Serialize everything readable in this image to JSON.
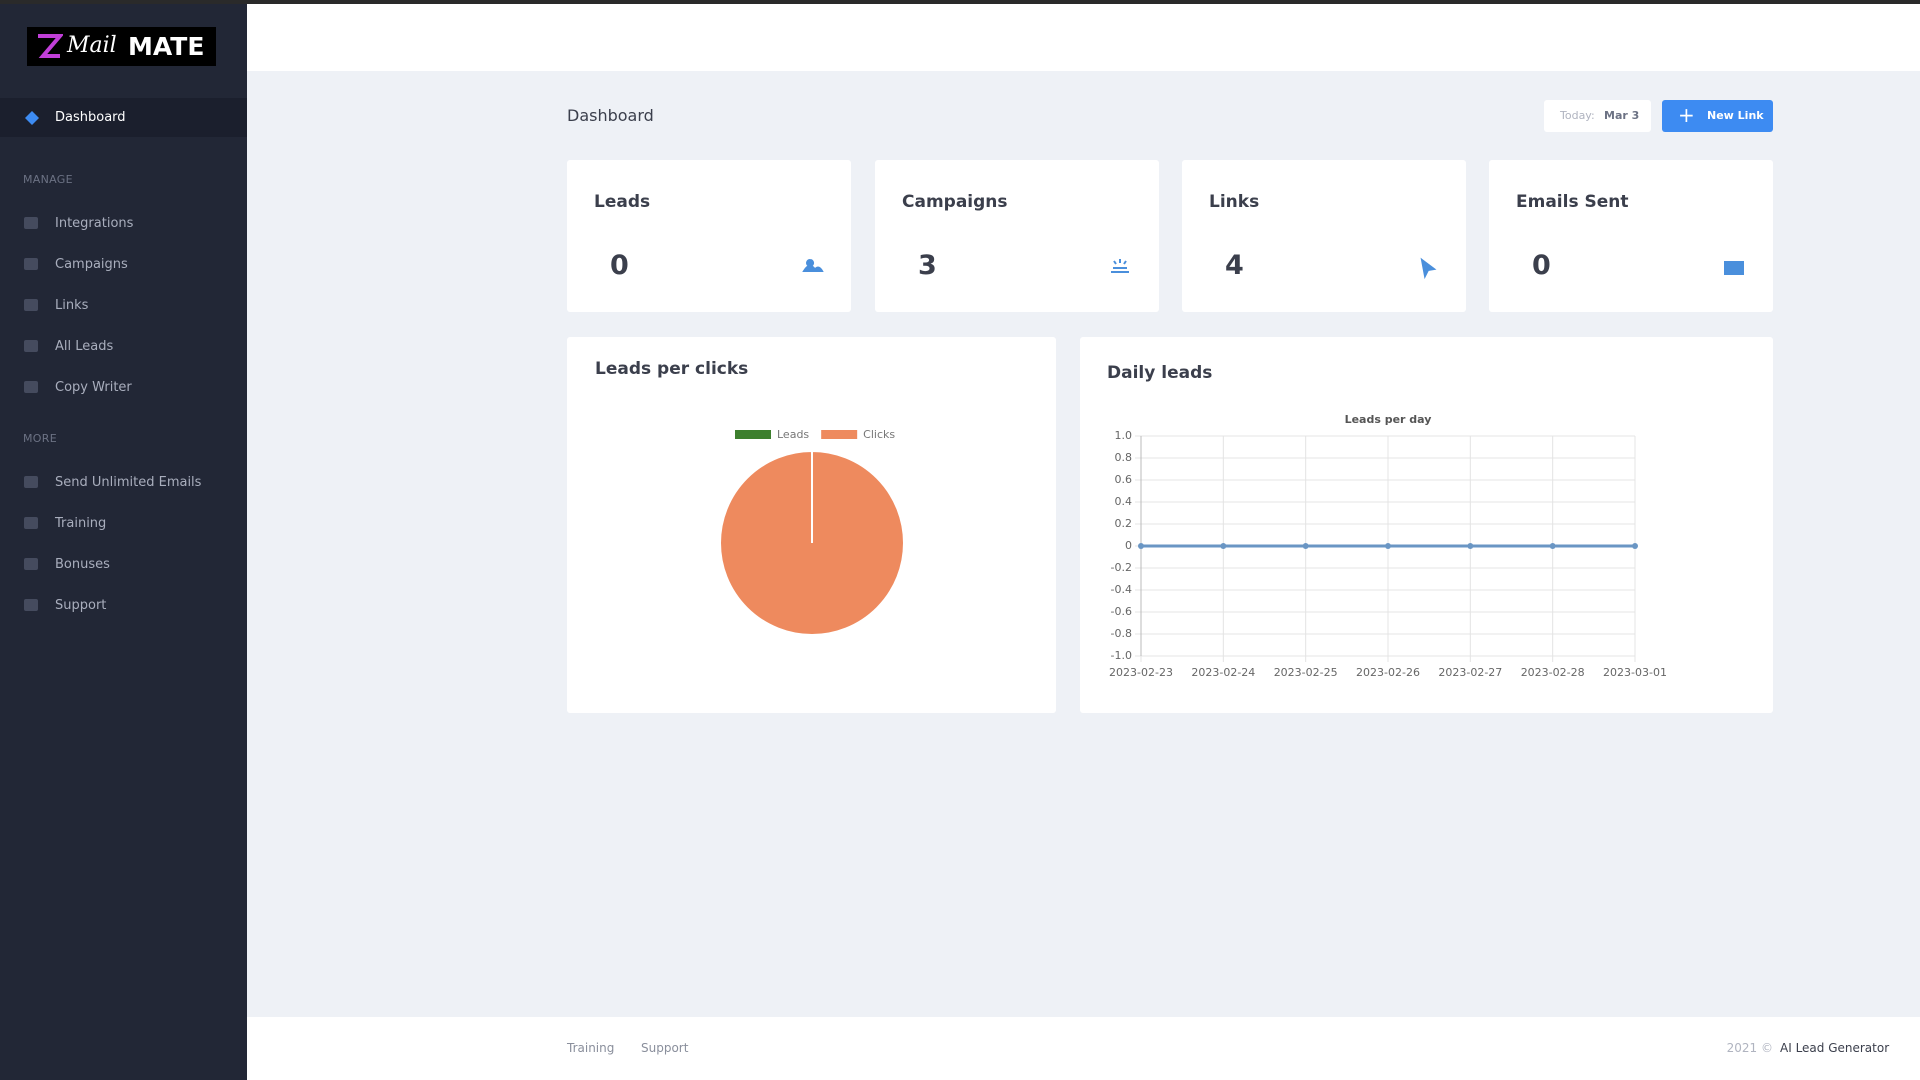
{
  "sidebar": {
    "logo": {
      "word1": "Mail",
      "word2": "MATE"
    },
    "active": "Dashboard",
    "sections": [
      {
        "title": "MANAGE",
        "items": [
          "Integrations",
          "Campaigns",
          "Links",
          "All Leads",
          "Copy Writer"
        ]
      },
      {
        "title": "MORE",
        "items": [
          "Send Unlimited Emails",
          "Training",
          "Bonuses",
          "Support"
        ]
      }
    ]
  },
  "page": {
    "title": "Dashboard",
    "today_label": "Today:",
    "today_value": "Mar 3",
    "button": "New Link"
  },
  "stats": [
    {
      "label": "Leads",
      "value": 0
    },
    {
      "label": "Campaigns",
      "value": 3
    },
    {
      "label": "Links",
      "value": 4
    },
    {
      "label": "Emails Sent",
      "value": 0
    }
  ],
  "panels": [
    "Leads per clicks",
    "Daily leads"
  ],
  "chart_data": [
    {
      "type": "pie",
      "categories": [
        "Leads",
        "Clicks"
      ],
      "values": [
        0,
        1
      ],
      "colors": [
        "#3d7f2e",
        "#ee8a5e"
      ],
      "legend": "top"
    },
    {
      "type": "line",
      "title": "Leads per day",
      "x": [
        "2023-02-23",
        "2023-02-24",
        "2023-02-25",
        "2023-02-26",
        "2023-02-27",
        "2023-02-28",
        "2023-03-01"
      ],
      "values": [
        0,
        0,
        0,
        0,
        0,
        0,
        0
      ],
      "color": "#6a96c4",
      "ylim": [
        -1,
        1
      ],
      "yticks": [
        {
          "value": 1,
          "label": "1.0"
        },
        0.8,
        0.6,
        0.4,
        0.2,
        0,
        -0.2,
        -0.4,
        -0.6,
        -0.8,
        {
          "value": -1,
          "label": "-1.0"
        }
      ],
      "grid": true
    }
  ],
  "footer": {
    "links": [
      "Training",
      "Support"
    ],
    "copyright": "2021 ©",
    "brand": "AI Lead Generator"
  }
}
